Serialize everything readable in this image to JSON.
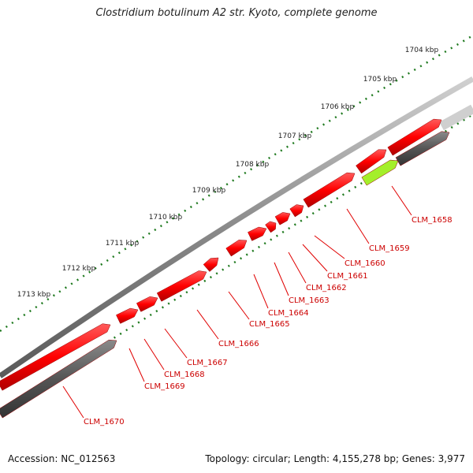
{
  "title": "Clostridium botulinum A2 str. Kyoto, complete genome",
  "footer": {
    "accession": "Accession: NC_012563",
    "summary": "Topology: circular; Length: 4,155,278 bp; Genes: 3,977"
  },
  "ticks": [
    "1704 kbp",
    "1705 kbp",
    "1706 kbp",
    "1707 kbp",
    "1708 kbp",
    "1709 kbp",
    "1710 kbp",
    "1711 kbp",
    "1712 kbp",
    "1713 kbp"
  ],
  "genes": [
    {
      "label": "CLM_1658",
      "color": "#a4ef2a"
    },
    {
      "label": "CLM_1659",
      "color": "#ff0000"
    },
    {
      "label": "CLM_1660",
      "color": "#ff0000"
    },
    {
      "label": "CLM_1661",
      "color": "#ff0000"
    },
    {
      "label": "CLM_1662",
      "color": "#ff0000"
    },
    {
      "label": "CLM_1663",
      "color": "#ff0000"
    },
    {
      "label": "CLM_1664",
      "color": "#ff0000"
    },
    {
      "label": "CLM_1665",
      "color": "#ff0000"
    },
    {
      "label": "CLM_1666",
      "color": "#ff0000"
    },
    {
      "label": "CLM_1667",
      "color": "#ff0000"
    },
    {
      "label": "CLM_1668",
      "color": "#ff0000"
    },
    {
      "label": "CLM_1669",
      "color": "#ff0000"
    },
    {
      "label": "CLM_1670",
      "color": "#555555"
    }
  ],
  "colors": {
    "forward_gene": "#ff0000",
    "reverse_gene": "#555555",
    "highlight_gene": "#a4ef2a",
    "backbone": "#8a8a8a",
    "tick": "#1f7a1f",
    "label_line": "#e00000"
  }
}
